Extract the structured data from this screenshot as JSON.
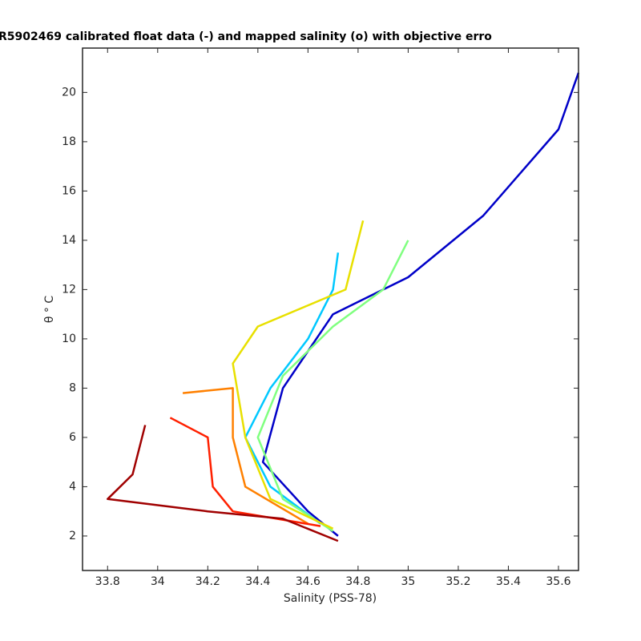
{
  "chart_data": {
    "type": "line",
    "title": "R5902469 calibrated float data (-) and mapped salinity (o) with objective erro",
    "xlabel": "Salinity (PSS-78)",
    "ylabel": "θ ° C",
    "xlim": [
      33.7,
      35.68
    ],
    "ylim": [
      0.6,
      21.8
    ],
    "xticks": [
      33.8,
      34,
      34.2,
      34.4,
      34.6,
      34.8,
      35,
      35.2,
      35.4,
      35.6
    ],
    "yticks": [
      2,
      4,
      6,
      8,
      10,
      12,
      14,
      16,
      18,
      20
    ],
    "series": [
      {
        "color": "#0000c8",
        "x": [
          35.68,
          35.6,
          35.3,
          35.0,
          34.7,
          34.5,
          34.42,
          34.6,
          34.72
        ],
        "values": [
          20.8,
          18.5,
          15,
          12.5,
          11,
          8,
          5,
          3,
          2
        ]
      },
      {
        "color": "#00c8ff",
        "x": [
          34.72,
          34.7,
          34.6,
          34.45,
          34.35,
          34.45,
          34.65
        ],
        "values": [
          13.5,
          12,
          10,
          8,
          6,
          4,
          2.5
        ]
      },
      {
        "color": "#80ff80",
        "x": [
          35.0,
          34.9,
          34.7,
          34.5,
          34.4,
          34.5,
          34.7
        ],
        "values": [
          14,
          12,
          10.5,
          8.5,
          6,
          3.5,
          2.2
        ]
      },
      {
        "color": "#e8e000",
        "x": [
          34.82,
          34.75,
          34.4,
          34.3,
          34.35,
          34.45,
          34.7
        ],
        "values": [
          14.8,
          12,
          10.5,
          9,
          6,
          3.5,
          2.3
        ]
      },
      {
        "color": "#ff8000",
        "x": [
          34.1,
          34.3,
          34.3,
          34.35,
          34.6
        ],
        "values": [
          7.8,
          8,
          6,
          4,
          2.5
        ]
      },
      {
        "color": "#ff2000",
        "x": [
          34.05,
          34.2,
          34.22,
          34.3,
          34.65
        ],
        "values": [
          6.8,
          6,
          4,
          3,
          2.4
        ]
      },
      {
        "color": "#a00000",
        "x": [
          33.95,
          33.9,
          33.8,
          34.2,
          34.5,
          34.72
        ],
        "values": [
          6.5,
          4.5,
          3.5,
          3,
          2.7,
          1.8
        ]
      }
    ]
  }
}
